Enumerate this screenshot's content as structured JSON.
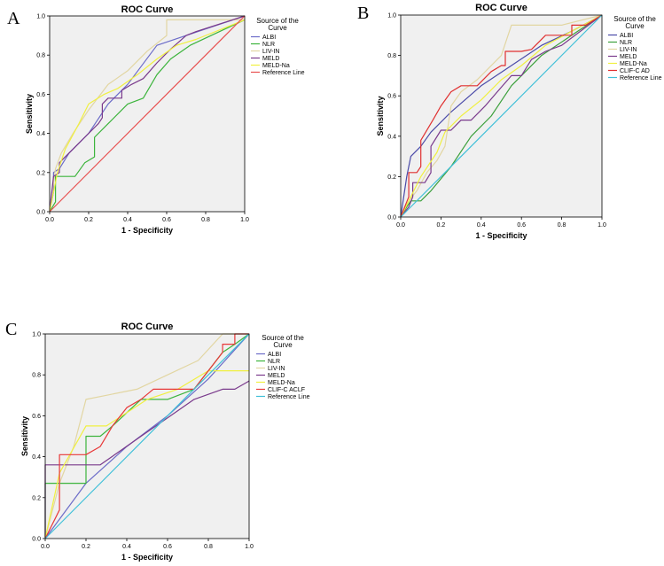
{
  "chart_data": [
    {
      "panel": "A",
      "type": "line",
      "title": "ROC Curve",
      "xlabel": "1 - Specificity",
      "ylabel": "Sensitivity",
      "xlim": [
        0,
        1
      ],
      "ylim": [
        0,
        1
      ],
      "xticks": [
        "0.0",
        "0.2",
        "0.4",
        "0.6",
        "0.8",
        "1.0"
      ],
      "yticks": [
        "0.0",
        "0.2",
        "0.4",
        "0.6",
        "0.8",
        "1.0"
      ],
      "grid": false,
      "legend_title": [
        "Source of the",
        "Curve"
      ],
      "legend_position": "right",
      "series": [
        {
          "name": "ALBI",
          "color": "#6c6cc8",
          "x": [
            0,
            0.02,
            0.02,
            0.05,
            0.1,
            0.2,
            0.3,
            0.4,
            0.55,
            0.7,
            1.0
          ],
          "y": [
            0,
            0.1,
            0.2,
            0.22,
            0.3,
            0.4,
            0.55,
            0.65,
            0.85,
            0.9,
            1.0
          ]
        },
        {
          "name": "NLR",
          "color": "#3cb43c",
          "x": [
            0,
            0.03,
            0.03,
            0.13,
            0.18,
            0.23,
            0.23,
            0.3,
            0.4,
            0.48,
            0.55,
            0.62,
            0.72,
            1.0
          ],
          "y": [
            0,
            0.05,
            0.18,
            0.18,
            0.25,
            0.28,
            0.38,
            0.45,
            0.55,
            0.58,
            0.7,
            0.78,
            0.85,
            0.98
          ]
        },
        {
          "name": "LIV-IN",
          "color": "#e2d6a2",
          "x": [
            0,
            0.03,
            0.06,
            0.12,
            0.2,
            0.3,
            0.4,
            0.5,
            0.6,
            0.6,
            0.8,
            1.0
          ],
          "y": [
            0,
            0.22,
            0.3,
            0.4,
            0.52,
            0.65,
            0.72,
            0.82,
            0.9,
            0.98,
            0.98,
            0.98
          ]
        },
        {
          "name": "MELD",
          "color": "#7a3a8c",
          "x": [
            0,
            0.02,
            0.05,
            0.05,
            0.08,
            0.12,
            0.18,
            0.25,
            0.27,
            0.27,
            0.3,
            0.37,
            0.37,
            0.42,
            0.48,
            0.55,
            0.62,
            0.7,
            0.75,
            1.0
          ],
          "y": [
            0,
            0.18,
            0.2,
            0.25,
            0.28,
            0.32,
            0.38,
            0.45,
            0.48,
            0.55,
            0.58,
            0.58,
            0.62,
            0.65,
            0.68,
            0.76,
            0.83,
            0.9,
            0.92,
            1.0
          ]
        },
        {
          "name": "MELD-Na",
          "color": "#f0f040",
          "x": [
            0,
            0.04,
            0.08,
            0.15,
            0.2,
            0.28,
            0.35,
            0.45,
            0.55,
            0.65,
            0.75,
            1.0
          ],
          "y": [
            0,
            0.2,
            0.32,
            0.45,
            0.55,
            0.6,
            0.63,
            0.7,
            0.78,
            0.85,
            0.88,
            0.98
          ]
        },
        {
          "name": "Reference Line",
          "color": "#e85050",
          "x": [
            0,
            1
          ],
          "y": [
            0,
            1
          ]
        }
      ]
    },
    {
      "panel": "B",
      "type": "line",
      "title": "ROC Curve",
      "xlabel": "1 - Specificity",
      "ylabel": "Sensitivity",
      "xlim": [
        0,
        1
      ],
      "ylim": [
        0,
        1
      ],
      "xticks": [
        "0.0",
        "0.2",
        "0.4",
        "0.6",
        "0.8",
        "1.0"
      ],
      "yticks": [
        "0.0",
        "0.2",
        "0.4",
        "0.6",
        "0.8",
        "1.0"
      ],
      "grid": false,
      "legend_title": [
        "Source of the",
        "Curve"
      ],
      "legend_position": "right",
      "series": [
        {
          "name": "ALBI",
          "color": "#4a4aa8",
          "x": [
            0,
            0.03,
            0.05,
            0.1,
            0.15,
            0.25,
            0.4,
            0.55,
            0.7,
            0.85,
            1.0
          ],
          "y": [
            0,
            0.2,
            0.3,
            0.35,
            0.42,
            0.52,
            0.65,
            0.75,
            0.85,
            0.92,
            1.0
          ]
        },
        {
          "name": "NLR",
          "color": "#3ca03c",
          "x": [
            0,
            0.03,
            0.05,
            0.1,
            0.15,
            0.25,
            0.35,
            0.45,
            0.55,
            0.7,
            0.85,
            1.0
          ],
          "y": [
            0,
            0.05,
            0.08,
            0.08,
            0.13,
            0.25,
            0.4,
            0.5,
            0.65,
            0.8,
            0.9,
            1.0
          ]
        },
        {
          "name": "LIV-IN",
          "color": "#e2d6a2",
          "x": [
            0,
            0.04,
            0.08,
            0.13,
            0.18,
            0.22,
            0.25,
            0.3,
            0.38,
            0.5,
            0.55,
            0.65,
            0.8,
            1.0
          ],
          "y": [
            0,
            0.08,
            0.13,
            0.22,
            0.28,
            0.35,
            0.55,
            0.62,
            0.68,
            0.8,
            0.95,
            0.95,
            0.95,
            1.0
          ]
        },
        {
          "name": "MELD",
          "color": "#7a3a8c",
          "x": [
            0,
            0.04,
            0.06,
            0.06,
            0.12,
            0.15,
            0.15,
            0.2,
            0.25,
            0.3,
            0.35,
            0.42,
            0.48,
            0.55,
            0.6,
            0.65,
            0.72,
            0.8,
            1.0
          ],
          "y": [
            0,
            0.05,
            0.1,
            0.17,
            0.17,
            0.22,
            0.35,
            0.43,
            0.43,
            0.48,
            0.48,
            0.55,
            0.62,
            0.7,
            0.7,
            0.78,
            0.82,
            0.85,
            1.0
          ]
        },
        {
          "name": "MELD-Na",
          "color": "#f0f040",
          "x": [
            0,
            0.05,
            0.1,
            0.18,
            0.22,
            0.3,
            0.4,
            0.5,
            0.6,
            0.72,
            0.85,
            1.0
          ],
          "y": [
            0,
            0.1,
            0.2,
            0.32,
            0.42,
            0.5,
            0.58,
            0.68,
            0.75,
            0.85,
            0.92,
            1.0
          ]
        },
        {
          "name": "CLIF-C AD",
          "color": "#e03030",
          "x": [
            0,
            0.04,
            0.04,
            0.08,
            0.1,
            0.1,
            0.16,
            0.2,
            0.25,
            0.3,
            0.38,
            0.45,
            0.5,
            0.52,
            0.52,
            0.6,
            0.65,
            0.72,
            0.85,
            0.85,
            0.92,
            1.0
          ],
          "y": [
            0,
            0.1,
            0.22,
            0.22,
            0.25,
            0.38,
            0.48,
            0.55,
            0.62,
            0.65,
            0.65,
            0.72,
            0.75,
            0.75,
            0.82,
            0.82,
            0.83,
            0.9,
            0.9,
            0.95,
            0.95,
            1.0
          ]
        },
        {
          "name": "Reference Line",
          "color": "#40c0d8",
          "x": [
            0,
            1
          ],
          "y": [
            0,
            1
          ]
        }
      ]
    },
    {
      "panel": "C",
      "type": "line",
      "title": "ROC Curve",
      "xlabel": "1 - Specificity",
      "ylabel": "Sensitivity",
      "xlim": [
        0,
        1
      ],
      "ylim": [
        0,
        1
      ],
      "xticks": [
        "0.0",
        "0.2",
        "0.4",
        "0.6",
        "0.8",
        "1.0"
      ],
      "yticks": [
        "0.0",
        "0.2",
        "0.4",
        "0.6",
        "0.8",
        "1.0"
      ],
      "grid": false,
      "legend_title": [
        "Source of the",
        "Curve"
      ],
      "legend_position": "right",
      "series": [
        {
          "name": "ALBI",
          "color": "#6c6cc8",
          "x": [
            0,
            0.2,
            0.4,
            0.6,
            0.8,
            1.0
          ],
          "y": [
            0,
            0.27,
            0.45,
            0.6,
            0.78,
            1.0
          ]
        },
        {
          "name": "NLR",
          "color": "#3cb43c",
          "x": [
            0,
            0,
            0.2,
            0.2,
            0.27,
            0.33,
            0.47,
            0.6,
            0.73,
            0.8,
            0.87,
            0.93,
            1.0
          ],
          "y": [
            0,
            0.27,
            0.27,
            0.5,
            0.5,
            0.55,
            0.68,
            0.68,
            0.73,
            0.82,
            0.91,
            0.95,
            1.0
          ]
        },
        {
          "name": "LIV-IN",
          "color": "#e2d6a2",
          "x": [
            0,
            0.07,
            0.14,
            0.2,
            0.3,
            0.45,
            0.6,
            0.75,
            0.87,
            1.0
          ],
          "y": [
            0,
            0.27,
            0.45,
            0.68,
            0.7,
            0.73,
            0.8,
            0.87,
            1.0,
            1.0
          ]
        },
        {
          "name": "MELD",
          "color": "#7a3a8c",
          "x": [
            0,
            0,
            0.27,
            0.47,
            0.6,
            0.73,
            0.87,
            0.93,
            1.0
          ],
          "y": [
            0,
            0.36,
            0.36,
            0.5,
            0.59,
            0.68,
            0.73,
            0.73,
            0.77
          ]
        },
        {
          "name": "MELD-Na",
          "color": "#f0f040",
          "x": [
            0,
            0.07,
            0.2,
            0.3,
            0.5,
            0.65,
            0.8,
            0.93,
            1.0
          ],
          "y": [
            0,
            0.32,
            0.55,
            0.55,
            0.68,
            0.73,
            0.82,
            0.82,
            0.82
          ]
        },
        {
          "name": "CLIF-C ACLF",
          "color": "#e83838",
          "x": [
            0,
            0.07,
            0.07,
            0.2,
            0.27,
            0.33,
            0.4,
            0.47,
            0.53,
            0.6,
            0.73,
            0.8,
            0.87,
            0.87,
            0.93,
            0.93,
            1.0
          ],
          "y": [
            0,
            0.14,
            0.41,
            0.41,
            0.45,
            0.55,
            0.64,
            0.68,
            0.73,
            0.73,
            0.73,
            0.82,
            0.91,
            0.95,
            0.95,
            1.0,
            1.0
          ]
        },
        {
          "name": "Reference Line",
          "color": "#40c0d8",
          "x": [
            0,
            1
          ],
          "y": [
            0,
            1
          ]
        }
      ]
    }
  ]
}
